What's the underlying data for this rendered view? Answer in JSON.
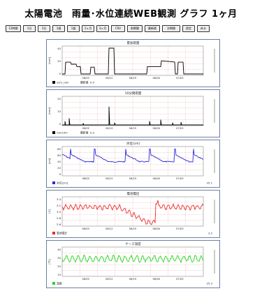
{
  "page": {
    "title": "太陽電池　雨量･水位連続WEB観測 グラフ 1ヶ月"
  },
  "toolbar": {
    "buttons": [
      "12時間",
      "1日",
      "3日",
      "1週",
      "1週",
      "1ヶ月",
      "3ヶ月",
      "CSV",
      "前期間",
      "最新版",
      "次期間",
      "設定",
      "戻る"
    ]
  },
  "colors": {
    "rain": "#000000",
    "level": "#2a2ad8",
    "voltage": "#ee2b2b",
    "temp": "#23d623",
    "grid": "#e48c8c",
    "frame": "#6e7fa3"
  },
  "panels": [
    {
      "title": "累加雨量",
      "ylabel": "[mm]",
      "yticks": [
        "40",
        "20",
        "0"
      ],
      "xticks": [
        "06/05",
        "06/12",
        "06/19",
        "06/26",
        "07/03"
      ],
      "legend": "sum_rain",
      "stat_label": "最新値",
      "stat_value": "0.0",
      "current": "",
      "series_color": "#000000"
    },
    {
      "title": "10分間雨量",
      "ylabel": "[mm]",
      "yticks": [
        "20",
        "10",
        "0"
      ],
      "xticks": [
        "06/05",
        "06/12",
        "06/19",
        "06/26",
        "07/03"
      ],
      "legend": "rain10m",
      "stat_label": "最新値",
      "stat_value": "0.0",
      "current": "",
      "series_color": "#000000"
    },
    {
      "title": "水位[cm]",
      "ylabel": "[cm]",
      "yticks": [
        "80",
        "60",
        "40",
        "20",
        "0"
      ],
      "xticks": [
        "06/05",
        "06/12",
        "06/19",
        "06/26",
        "07/03"
      ],
      "legend": "水位[cm]",
      "stat_label": "",
      "stat_value": "",
      "current": "35.1",
      "series_color": "#2a2ad8"
    },
    {
      "title": "電池電圧",
      "ylabel": "[V]",
      "yticks": [
        "3.4",
        "3.2",
        "3.0",
        "2.8",
        "2.6"
      ],
      "xticks": [
        "06/05",
        "06/12",
        "06/19",
        "06/26",
        "07/03"
      ],
      "legend": "電池電圧",
      "stat_label": "",
      "stat_value": "",
      "current": "3.2",
      "series_color": "#ee2b2b"
    },
    {
      "title": "ケース温度",
      "ylabel": "[℃]",
      "yticks": [
        "40",
        "30",
        "20",
        "10"
      ],
      "xticks": [
        "06/05",
        "06/12",
        "06/19",
        "06/26",
        "07/03"
      ],
      "legend": "温度",
      "stat_label": "",
      "stat_value": "",
      "current": "25.3",
      "series_color": "#23d623"
    }
  ]
}
